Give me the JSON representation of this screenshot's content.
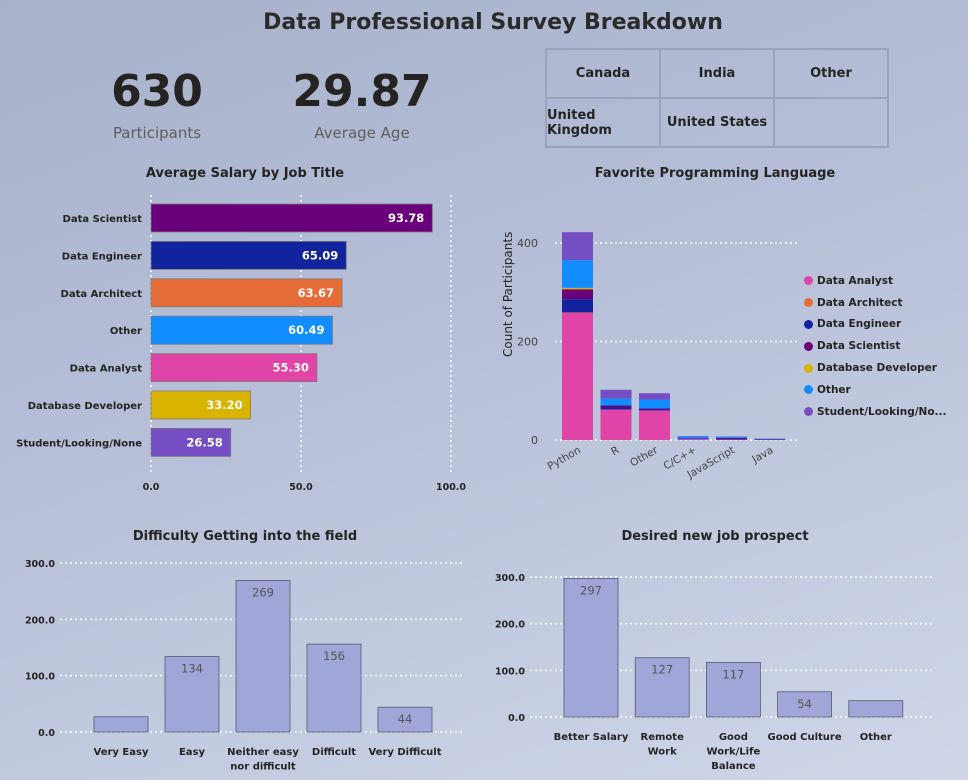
{
  "title": "Data Professional Survey Breakdown",
  "kpis": [
    {
      "value": "630",
      "label": "Participants"
    },
    {
      "value": "29.87",
      "label": "Average Age"
    }
  ],
  "country_slicer": [
    "Canada",
    "India",
    "Other",
    "United Kingdom",
    "United States",
    ""
  ],
  "chart_data": [
    {
      "type": "bar",
      "orientation": "horizontal",
      "title": "Average Salary by Job Title",
      "categories": [
        "Data Scientist",
        "Data Engineer",
        "Data Architect",
        "Other",
        "Data Analyst",
        "Database Developer",
        "Student/Looking/None"
      ],
      "values": [
        93.78,
        65.09,
        63.67,
        60.49,
        55.3,
        33.2,
        26.58
      ],
      "value_labels": [
        "93.78",
        "65.09",
        "63.67",
        "60.49",
        "55.30",
        "33.20",
        "26.58"
      ],
      "colors": [
        "#6b007b",
        "#12239e",
        "#e66c37",
        "#118dff",
        "#e044a7",
        "#d9b300",
        "#744ec2"
      ],
      "xlim": [
        0,
        100
      ],
      "x_ticks": [
        "0.0",
        "50.0",
        "100.0"
      ],
      "grid": true
    },
    {
      "type": "bar",
      "stacked": true,
      "title": "Favorite Programming Language",
      "ylabel": "Count of Participants",
      "categories": [
        "Python",
        "R",
        "Other",
        "C/C++",
        "JavaScript",
        "Java"
      ],
      "ylim": [
        0,
        450
      ],
      "y_ticks": [
        "0",
        "200",
        "400"
      ],
      "legend_position": "right",
      "series": [
        {
          "name": "Data Analyst",
          "color": "#e044a7",
          "values": [
            258,
            62,
            60,
            2,
            1,
            1
          ]
        },
        {
          "name": "Data Architect",
          "color": "#e66c37",
          "values": [
            1,
            0,
            0,
            0,
            0,
            0
          ]
        },
        {
          "name": "Data Engineer",
          "color": "#12239e",
          "values": [
            27,
            4,
            2,
            1,
            2,
            1
          ]
        },
        {
          "name": "Data Scientist",
          "color": "#6b007b",
          "values": [
            20,
            4,
            2,
            0,
            1,
            0
          ]
        },
        {
          "name": "Database Developer",
          "color": "#d9b300",
          "values": [
            3,
            0,
            0,
            0,
            0,
            0
          ]
        },
        {
          "name": "Other",
          "color": "#118dff",
          "values": [
            56,
            14,
            18,
            4,
            2,
            1
          ]
        },
        {
          "name": "Student/Looking/No...",
          "color": "#744ec2",
          "values": [
            57,
            18,
            13,
            1,
            1,
            0
          ]
        }
      ]
    },
    {
      "type": "bar",
      "title": "Difficulty Getting into the field",
      "categories": [
        "Very Easy",
        "Easy",
        "Neither easy nor difficult",
        "Difficult",
        "Very Difficult"
      ],
      "category_lines": [
        [
          "Very Easy"
        ],
        [
          "Easy"
        ],
        [
          "Neither easy",
          "nor difficult"
        ],
        [
          "Difficult"
        ],
        [
          "Very Difficult"
        ]
      ],
      "values": [
        27,
        134,
        269,
        156,
        44
      ],
      "value_labels": [
        "",
        "134",
        "269",
        "156",
        "44"
      ],
      "ylim": [
        0,
        300
      ],
      "y_ticks": [
        "0.0",
        "100.0",
        "200.0",
        "300.0"
      ],
      "color": "#a0a6d8",
      "grid": true
    },
    {
      "type": "bar",
      "title": "Desired new job prospect",
      "categories": [
        "Better Salary",
        "Remote Work",
        "Good Work/Life Balance",
        "Good Culture",
        "Other"
      ],
      "category_lines": [
        [
          "Better Salary"
        ],
        [
          "Remote",
          "Work"
        ],
        [
          "Good",
          "Work/Life",
          "Balance"
        ],
        [
          "Good Culture"
        ],
        [
          "Other"
        ]
      ],
      "values": [
        297,
        127,
        117,
        54,
        35
      ],
      "value_labels": [
        "297",
        "127",
        "117",
        "54",
        ""
      ],
      "ylim": [
        0,
        300
      ],
      "y_ticks": [
        "0.0",
        "100.0",
        "200.0",
        "300.0"
      ],
      "color": "#a0a6d8",
      "grid": true
    }
  ]
}
